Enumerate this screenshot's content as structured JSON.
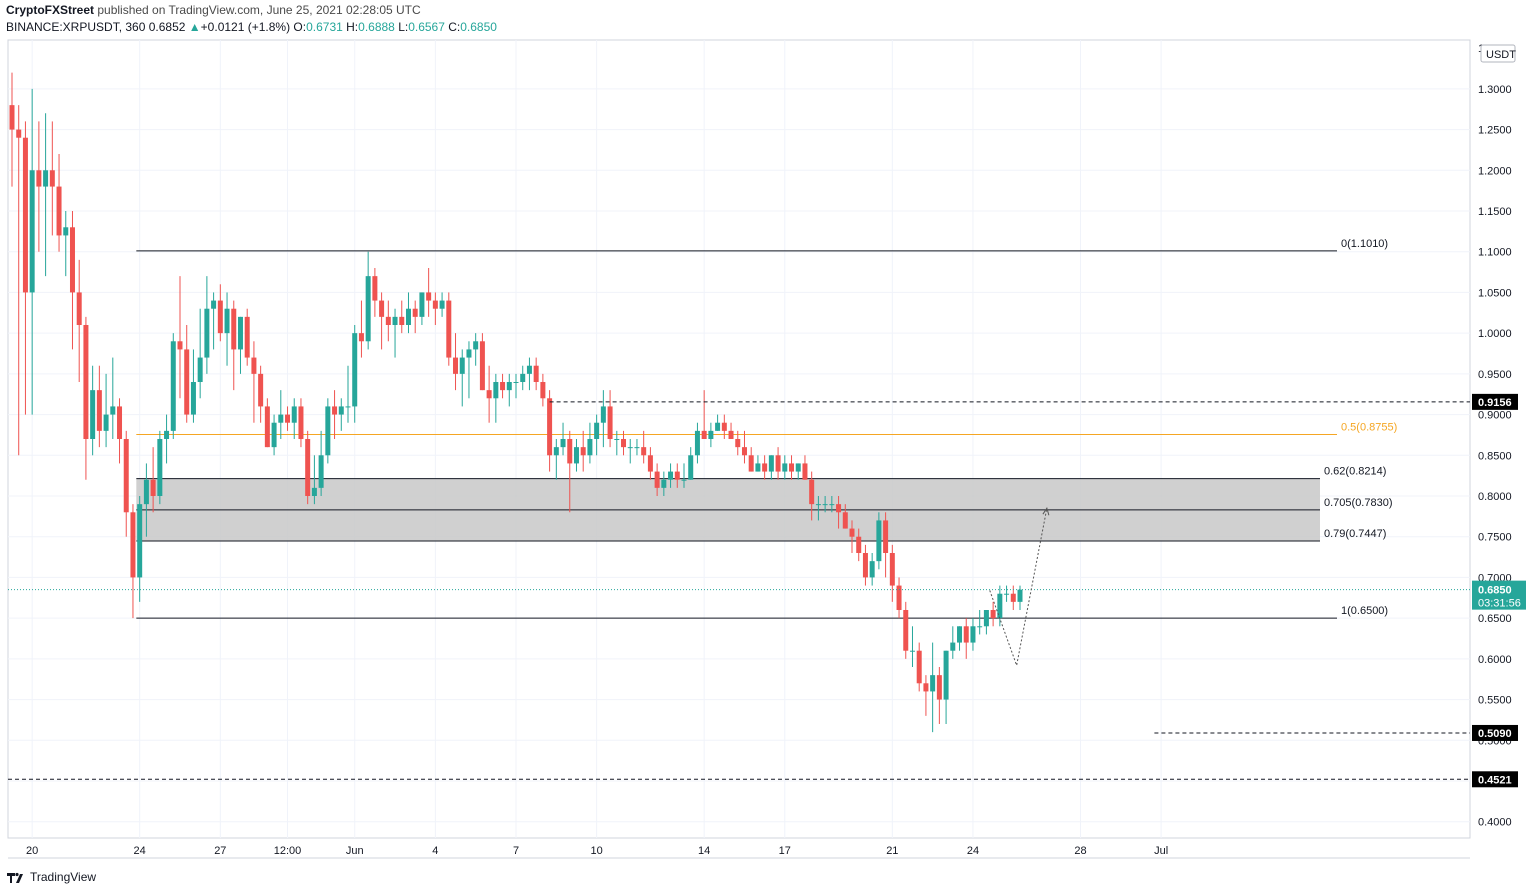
{
  "header": {
    "line1_brand": "CryptoFXStreet",
    "line1_rest": " published on TradingView.com, June 25, 2021 02:28:05 UTC",
    "symbol": "BINANCE:XRPUSDT, 360",
    "last": "0.6852",
    "change_arrow": "▲",
    "change": "+0.0121 (+1.8%)",
    "o_label": "O:",
    "o_value": "0.6731",
    "h_label": "H:",
    "h_value": "0.6888",
    "l_label": "L:",
    "l_value": "0.6567",
    "c_label": "C:",
    "c_value": "0.6850"
  },
  "footer": {
    "brand": "TradingView"
  },
  "colors": {
    "up": "#26a69a",
    "down": "#ef5350",
    "fib_half": "#f5a623",
    "zone_fill": "#c8c8c8",
    "price_tag": "#26a69a",
    "level_tag": "#000000"
  },
  "chart_data": {
    "type": "candlestick",
    "symbol": "XRPUSDT",
    "exchange": "BINANCE",
    "timeframe": "360",
    "currency_label": "USDT",
    "ylim": [
      0.38,
      1.36
    ],
    "y_ticks": [
      "0.4000",
      "0.4500",
      "0.5000",
      "0.5500",
      "0.6000",
      "0.6500",
      "0.7000",
      "0.7500",
      "0.8000",
      "0.8500",
      "0.9000",
      "0.9500",
      "1.0000",
      "1.0500",
      "1.1000",
      "1.1500",
      "1.2000",
      "1.2500",
      "1.3000"
    ],
    "y_top_partial_label": "1",
    "x_ticks": [
      {
        "label": "20",
        "pos": 3
      },
      {
        "label": "24",
        "pos": 19
      },
      {
        "label": "27",
        "pos": 31
      },
      {
        "label": "12:00",
        "pos": 41
      },
      {
        "label": "Jun",
        "pos": 51
      },
      {
        "label": "4",
        "pos": 63
      },
      {
        "label": "7",
        "pos": 75
      },
      {
        "label": "10",
        "pos": 87
      },
      {
        "label": "14",
        "pos": 103
      },
      {
        "label": "17",
        "pos": 115
      },
      {
        "label": "21",
        "pos": 131
      },
      {
        "label": "24",
        "pos": 143
      },
      {
        "label": "28",
        "pos": 159
      },
      {
        "label": "Jul",
        "pos": 171
      }
    ],
    "fib_levels": [
      {
        "label": "0(1.1010)",
        "value": 1.101
      },
      {
        "label": "0.5(0.8755)",
        "value": 0.8755,
        "highlight": true
      },
      {
        "label": "0.62(0.8214)",
        "value": 0.8214
      },
      {
        "label": "0.705(0.7830)",
        "value": 0.783
      },
      {
        "label": "0.79(0.7447)",
        "value": 0.7447
      },
      {
        "label": "1(0.6500)",
        "value": 0.65
      }
    ],
    "zone": {
      "from": 0.7447,
      "to": 0.8214
    },
    "dashed_levels": [
      {
        "label": "0.9156",
        "value": 0.9156
      },
      {
        "label": "0.5090",
        "value": 0.509
      },
      {
        "label": "0.4521",
        "value": 0.4521
      }
    ],
    "last_price": {
      "label": "0.6850",
      "value": 0.685,
      "countdown": "03:31:56"
    },
    "projection_path": [
      {
        "x": 145.5,
        "y": 0.684
      },
      {
        "x": 149.5,
        "y": 0.592
      },
      {
        "x": 154.0,
        "y": 0.785
      }
    ],
    "candles": [
      [
        1.28,
        1.32,
        1.18,
        1.25
      ],
      [
        1.25,
        1.28,
        0.85,
        1.24
      ],
      [
        1.24,
        1.26,
        0.9,
        1.05
      ],
      [
        1.05,
        1.3,
        0.9,
        1.2
      ],
      [
        1.2,
        1.26,
        1.1,
        1.18
      ],
      [
        1.18,
        1.27,
        1.07,
        1.2
      ],
      [
        1.2,
        1.26,
        1.12,
        1.18
      ],
      [
        1.18,
        1.22,
        1.1,
        1.12
      ],
      [
        1.12,
        1.15,
        1.07,
        1.13
      ],
      [
        1.13,
        1.15,
        0.98,
        1.05
      ],
      [
        1.05,
        1.09,
        0.94,
        1.01
      ],
      [
        1.01,
        1.02,
        0.82,
        0.87
      ],
      [
        0.87,
        0.96,
        0.85,
        0.93
      ],
      [
        0.93,
        0.96,
        0.86,
        0.88
      ],
      [
        0.88,
        0.95,
        0.86,
        0.9
      ],
      [
        0.9,
        0.97,
        0.87,
        0.91
      ],
      [
        0.91,
        0.92,
        0.84,
        0.87
      ],
      [
        0.87,
        0.88,
        0.75,
        0.78
      ],
      [
        0.78,
        0.79,
        0.65,
        0.7
      ],
      [
        0.7,
        0.8,
        0.67,
        0.79
      ],
      [
        0.79,
        0.84,
        0.75,
        0.82
      ],
      [
        0.82,
        0.86,
        0.78,
        0.8
      ],
      [
        0.8,
        0.88,
        0.79,
        0.87
      ],
      [
        0.87,
        0.9,
        0.84,
        0.88
      ],
      [
        0.88,
        1.0,
        0.87,
        0.99
      ],
      [
        0.99,
        1.07,
        0.92,
        0.98
      ],
      [
        0.98,
        1.01,
        0.89,
        0.9
      ],
      [
        0.9,
        0.98,
        0.89,
        0.94
      ],
      [
        0.94,
        1.03,
        0.92,
        0.97
      ],
      [
        0.97,
        1.07,
        0.95,
        1.03
      ],
      [
        1.03,
        1.05,
        0.98,
        1.04
      ],
      [
        1.04,
        1.06,
        0.99,
        1.0
      ],
      [
        1.0,
        1.05,
        0.96,
        1.03
      ],
      [
        1.03,
        1.04,
        0.93,
        0.98
      ],
      [
        0.98,
        1.02,
        0.95,
        1.02
      ],
      [
        1.02,
        1.03,
        0.96,
        0.97
      ],
      [
        0.97,
        0.99,
        0.89,
        0.95
      ],
      [
        0.95,
        0.96,
        0.89,
        0.91
      ],
      [
        0.91,
        0.92,
        0.86,
        0.86
      ],
      [
        0.86,
        0.9,
        0.85,
        0.89
      ],
      [
        0.89,
        0.93,
        0.87,
        0.9
      ],
      [
        0.9,
        0.91,
        0.88,
        0.89
      ],
      [
        0.89,
        0.92,
        0.87,
        0.91
      ],
      [
        0.91,
        0.92,
        0.86,
        0.87
      ],
      [
        0.87,
        0.88,
        0.79,
        0.8
      ],
      [
        0.8,
        0.85,
        0.79,
        0.81
      ],
      [
        0.81,
        0.88,
        0.8,
        0.85
      ],
      [
        0.85,
        0.92,
        0.84,
        0.91
      ],
      [
        0.91,
        0.93,
        0.87,
        0.9
      ],
      [
        0.9,
        0.92,
        0.88,
        0.91
      ],
      [
        0.91,
        0.96,
        0.89,
        0.91
      ],
      [
        0.91,
        1.01,
        0.89,
        1.0
      ],
      [
        1.0,
        1.04,
        0.97,
        0.99
      ],
      [
        0.99,
        1.1,
        0.98,
        1.07
      ],
      [
        1.07,
        1.08,
        1.02,
        1.04
      ],
      [
        1.04,
        1.05,
        0.98,
        1.02
      ],
      [
        1.02,
        1.04,
        0.99,
        1.01
      ],
      [
        1.01,
        1.03,
        0.97,
        1.02
      ],
      [
        1.02,
        1.04,
        1.0,
        1.01
      ],
      [
        1.01,
        1.05,
        1.0,
        1.03
      ],
      [
        1.03,
        1.04,
        1.0,
        1.02
      ],
      [
        1.02,
        1.05,
        1.01,
        1.05
      ],
      [
        1.05,
        1.08,
        1.02,
        1.04
      ],
      [
        1.04,
        1.05,
        1.01,
        1.03
      ],
      [
        1.03,
        1.05,
        1.02,
        1.04
      ],
      [
        1.04,
        1.05,
        0.96,
        0.97
      ],
      [
        0.97,
        1.0,
        0.93,
        0.95
      ],
      [
        0.95,
        0.98,
        0.91,
        0.97
      ],
      [
        0.97,
        0.99,
        0.92,
        0.98
      ],
      [
        0.98,
        1.0,
        0.96,
        0.99
      ],
      [
        0.99,
        1.0,
        0.93,
        0.93
      ],
      [
        0.93,
        0.96,
        0.89,
        0.92
      ],
      [
        0.92,
        0.95,
        0.89,
        0.94
      ],
      [
        0.94,
        0.95,
        0.92,
        0.93
      ],
      [
        0.93,
        0.95,
        0.91,
        0.94
      ],
      [
        0.94,
        0.95,
        0.92,
        0.94
      ],
      [
        0.94,
        0.96,
        0.93,
        0.95
      ],
      [
        0.95,
        0.97,
        0.93,
        0.96
      ],
      [
        0.96,
        0.97,
        0.93,
        0.94
      ],
      [
        0.94,
        0.95,
        0.91,
        0.92
      ],
      [
        0.92,
        0.93,
        0.83,
        0.85
      ],
      [
        0.85,
        0.87,
        0.82,
        0.86
      ],
      [
        0.86,
        0.89,
        0.85,
        0.87
      ],
      [
        0.87,
        0.88,
        0.78,
        0.84
      ],
      [
        0.84,
        0.87,
        0.83,
        0.86
      ],
      [
        0.86,
        0.88,
        0.83,
        0.85
      ],
      [
        0.85,
        0.89,
        0.84,
        0.87
      ],
      [
        0.87,
        0.9,
        0.85,
        0.89
      ],
      [
        0.89,
        0.93,
        0.86,
        0.91
      ],
      [
        0.91,
        0.93,
        0.86,
        0.87
      ],
      [
        0.87,
        0.88,
        0.85,
        0.87
      ],
      [
        0.87,
        0.88,
        0.85,
        0.86
      ],
      [
        0.86,
        0.87,
        0.84,
        0.86
      ],
      [
        0.86,
        0.87,
        0.85,
        0.86
      ],
      [
        0.86,
        0.88,
        0.84,
        0.85
      ],
      [
        0.85,
        0.86,
        0.82,
        0.83
      ],
      [
        0.83,
        0.84,
        0.8,
        0.81
      ],
      [
        0.81,
        0.83,
        0.8,
        0.82
      ],
      [
        0.82,
        0.84,
        0.81,
        0.83
      ],
      [
        0.83,
        0.84,
        0.81,
        0.82
      ],
      [
        0.82,
        0.84,
        0.81,
        0.82
      ],
      [
        0.82,
        0.86,
        0.82,
        0.85
      ],
      [
        0.85,
        0.89,
        0.84,
        0.88
      ],
      [
        0.88,
        0.93,
        0.87,
        0.87
      ],
      [
        0.87,
        0.89,
        0.86,
        0.88
      ],
      [
        0.88,
        0.9,
        0.88,
        0.89
      ],
      [
        0.89,
        0.9,
        0.87,
        0.88
      ],
      [
        0.88,
        0.89,
        0.87,
        0.87
      ],
      [
        0.87,
        0.88,
        0.85,
        0.86
      ],
      [
        0.86,
        0.88,
        0.84,
        0.85
      ],
      [
        0.85,
        0.86,
        0.83,
        0.83
      ],
      [
        0.83,
        0.85,
        0.83,
        0.84
      ],
      [
        0.84,
        0.85,
        0.82,
        0.83
      ],
      [
        0.83,
        0.85,
        0.82,
        0.85
      ],
      [
        0.85,
        0.86,
        0.82,
        0.83
      ],
      [
        0.83,
        0.85,
        0.82,
        0.84
      ],
      [
        0.84,
        0.85,
        0.82,
        0.83
      ],
      [
        0.83,
        0.84,
        0.82,
        0.84
      ],
      [
        0.84,
        0.85,
        0.82,
        0.82
      ],
      [
        0.82,
        0.83,
        0.77,
        0.79
      ],
      [
        0.79,
        0.8,
        0.77,
        0.79
      ],
      [
        0.79,
        0.8,
        0.78,
        0.79
      ],
      [
        0.79,
        0.8,
        0.78,
        0.79
      ],
      [
        0.79,
        0.8,
        0.76,
        0.78
      ],
      [
        0.78,
        0.79,
        0.76,
        0.76
      ],
      [
        0.76,
        0.77,
        0.73,
        0.75
      ],
      [
        0.75,
        0.76,
        0.72,
        0.73
      ],
      [
        0.73,
        0.74,
        0.69,
        0.7
      ],
      [
        0.7,
        0.73,
        0.69,
        0.72
      ],
      [
        0.72,
        0.78,
        0.71,
        0.77
      ],
      [
        0.77,
        0.78,
        0.7,
        0.73
      ],
      [
        0.73,
        0.74,
        0.67,
        0.69
      ],
      [
        0.69,
        0.7,
        0.65,
        0.66
      ],
      [
        0.66,
        0.67,
        0.6,
        0.61
      ],
      [
        0.61,
        0.64,
        0.59,
        0.61
      ],
      [
        0.61,
        0.62,
        0.56,
        0.57
      ],
      [
        0.57,
        0.58,
        0.53,
        0.56
      ],
      [
        0.56,
        0.62,
        0.51,
        0.58
      ],
      [
        0.58,
        0.59,
        0.52,
        0.55
      ],
      [
        0.55,
        0.61,
        0.52,
        0.61
      ],
      [
        0.61,
        0.64,
        0.6,
        0.62
      ],
      [
        0.62,
        0.64,
        0.61,
        0.64
      ],
      [
        0.64,
        0.65,
        0.6,
        0.62
      ],
      [
        0.62,
        0.65,
        0.61,
        0.64
      ],
      [
        0.64,
        0.66,
        0.63,
        0.64
      ],
      [
        0.64,
        0.66,
        0.63,
        0.66
      ],
      [
        0.66,
        0.67,
        0.64,
        0.65
      ],
      [
        0.65,
        0.69,
        0.64,
        0.68
      ],
      [
        0.68,
        0.69,
        0.67,
        0.68
      ],
      [
        0.68,
        0.69,
        0.66,
        0.67
      ],
      [
        0.67,
        0.69,
        0.66,
        0.685
      ]
    ]
  }
}
